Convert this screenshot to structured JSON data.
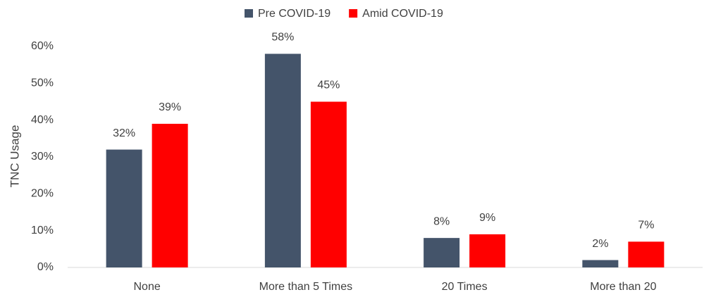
{
  "chart_data": {
    "type": "bar",
    "ylabel": "TNC Usage",
    "categories": [
      "None",
      "More than 5 Times",
      "20 Times",
      "More than 20"
    ],
    "series": [
      {
        "name": "Pre COVID-19",
        "color": "#44546a",
        "values": [
          32,
          58,
          8,
          2
        ],
        "value_labels": [
          "32%",
          "58%",
          "8%",
          "2%"
        ]
      },
      {
        "name": "Amid COVID-19",
        "color": "#ff0000",
        "values": [
          39,
          45,
          9,
          7
        ],
        "value_labels": [
          "39%",
          "45%",
          "9%",
          "7%"
        ]
      }
    ],
    "ylim": [
      0,
      60
    ],
    "yticks": [
      {
        "value": 0,
        "label": "0%"
      },
      {
        "value": 10,
        "label": "10%"
      },
      {
        "value": 20,
        "label": "20%"
      },
      {
        "value": 30,
        "label": "30%"
      },
      {
        "value": 40,
        "label": "40%"
      },
      {
        "value": 50,
        "label": "50%"
      },
      {
        "value": 60,
        "label": "60%"
      }
    ],
    "grid": false,
    "legend": "top"
  }
}
